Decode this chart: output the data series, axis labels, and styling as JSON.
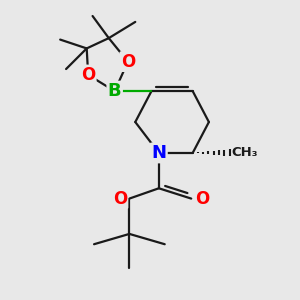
{
  "background_color": "#e8e8e8",
  "bond_color": "#1a1a1a",
  "N_color": "#0000ff",
  "O_color": "#ff0000",
  "B_color": "#00aa00",
  "figsize": [
    3.0,
    3.0
  ],
  "dpi": 100,
  "xlim": [
    0,
    10
  ],
  "ylim": [
    0,
    10
  ]
}
